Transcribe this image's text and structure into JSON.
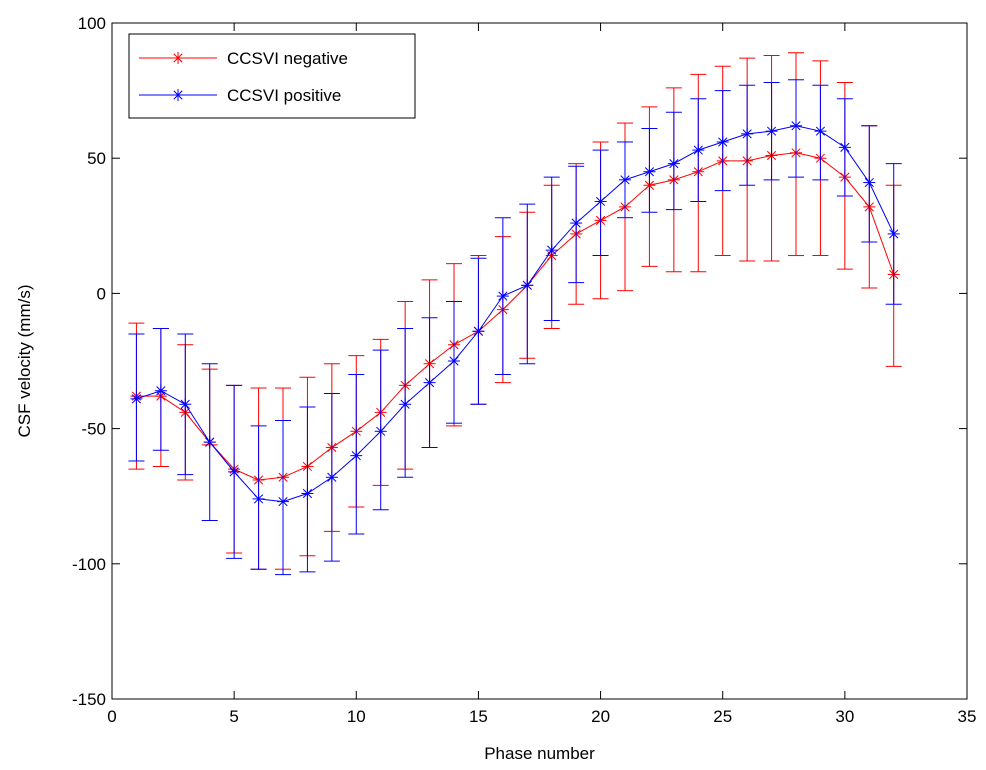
{
  "chart_data": {
    "type": "line",
    "title": "",
    "xlabel": "Phase number",
    "ylabel": "CSF velocity (mm/s)",
    "xlim": [
      0,
      35
    ],
    "ylim": [
      -150,
      100
    ],
    "xticks": [
      0,
      5,
      10,
      15,
      20,
      25,
      30,
      35
    ],
    "yticks": [
      -150,
      -100,
      -50,
      0,
      50,
      100
    ],
    "grid": false,
    "legend_position": "top-left",
    "x": [
      1,
      2,
      3,
      4,
      5,
      6,
      7,
      8,
      9,
      10,
      11,
      12,
      13,
      14,
      15,
      16,
      17,
      18,
      19,
      20,
      21,
      22,
      23,
      24,
      25,
      26,
      27,
      28,
      29,
      30,
      31,
      32
    ],
    "series": [
      {
        "name": "CCSVI negative",
        "color": "#ff0000",
        "marker": "asterisk",
        "values": [
          -38,
          -38,
          -44,
          -55,
          -65,
          -69,
          -68,
          -64,
          -57,
          -51,
          -44,
          -34,
          -26,
          -19,
          -14,
          -6,
          3,
          14,
          22,
          27,
          32,
          40,
          42,
          45,
          49,
          49,
          51,
          52,
          50,
          43,
          32,
          7
        ],
        "err_low": [
          -65,
          -64,
          -69,
          -56,
          -96,
          -102,
          -102,
          -97,
          -88,
          -79,
          -71,
          -65,
          -57,
          -49,
          -41,
          -33,
          -24,
          -13,
          -4,
          -2,
          1,
          10,
          8,
          8,
          14,
          12,
          12,
          14,
          14,
          9,
          2,
          -27
        ],
        "err_high": [
          -11,
          -13,
          -19,
          -28,
          -34,
          -35,
          -35,
          -31,
          -26,
          -23,
          -17,
          -3,
          5,
          11,
          14,
          21,
          30,
          40,
          48,
          56,
          63,
          69,
          76,
          81,
          84,
          87,
          88,
          89,
          86,
          78,
          62,
          40
        ]
      },
      {
        "name": "CCSVI positive",
        "color": "#0000ff",
        "marker": "asterisk",
        "values": [
          -39,
          -36,
          -41,
          -55,
          -66,
          -76,
          -77,
          -74,
          -68,
          -60,
          -51,
          -41,
          -33,
          -25,
          -14,
          -1,
          3,
          16,
          26,
          34,
          42,
          45,
          48,
          53,
          56,
          59,
          60,
          62,
          60,
          54,
          41,
          22
        ],
        "err_low": [
          -62,
          -58,
          -67,
          -84,
          -98,
          -102,
          -104,
          -103,
          -99,
          -89,
          -80,
          -68,
          -57,
          -48,
          -41,
          -30,
          -26,
          -10,
          4,
          14,
          28,
          30,
          31,
          34,
          38,
          40,
          42,
          43,
          42,
          36,
          19,
          -4
        ],
        "err_high": [
          -15,
          -13,
          -15,
          -26,
          -34,
          -49,
          -47,
          -42,
          -37,
          -30,
          -21,
          -13,
          -9,
          -3,
          13,
          28,
          33,
          43,
          47,
          53,
          56,
          61,
          67,
          72,
          75,
          77,
          78,
          79,
          77,
          72,
          62,
          48
        ]
      }
    ]
  }
}
